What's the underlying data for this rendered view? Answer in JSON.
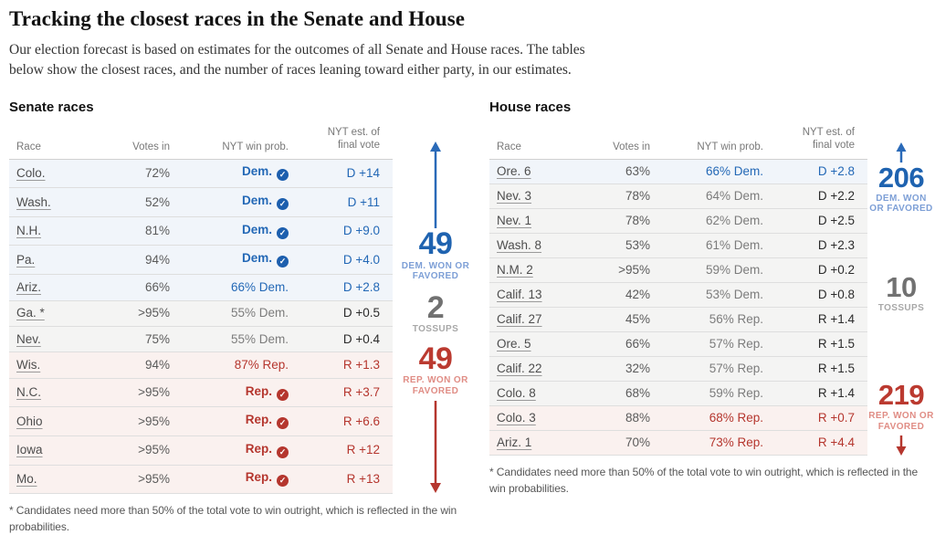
{
  "page": {
    "title": "Tracking the closest races in the Senate and House",
    "subtitle": "Our election forecast is based on estimates for the outcomes of all Senate and House races. The tables below show the closest races, and the number of races leaning toward either party, in our estimates."
  },
  "columns": {
    "race": "Race",
    "votes_in": "Votes in",
    "win_prob": "NYT win prob.",
    "est_line1": "NYT est. of",
    "est_line2": "final vote"
  },
  "footnote": "* Candidates need more than 50% of the total vote to win outright, which is reflected in the win probabilities.",
  "colors": {
    "dem_blue": "#2368b6",
    "rep_red": "#b5362e",
    "tossup_gray": "#7c7c7c",
    "dem_row_bg": "#f1f5fa",
    "tossup_row_bg": "#f4f4f3",
    "rep_row_bg": "#faf1ef"
  },
  "senate": {
    "heading": "Senate races",
    "summary": {
      "dem": {
        "value": "49",
        "label": "DEM. WON OR FAVORED"
      },
      "tossups": {
        "value": "2",
        "label": "TOSSUPS"
      },
      "rep": {
        "value": "49",
        "label": "REP. WON OR FAVORED"
      }
    },
    "rows": [
      {
        "race": "Colo.",
        "votes": "72%",
        "prob": "Dem.",
        "check": true,
        "est": "D +14",
        "party": "dem"
      },
      {
        "race": "Wash.",
        "votes": "52%",
        "prob": "Dem.",
        "check": true,
        "est": "D +11",
        "party": "dem"
      },
      {
        "race": "N.H.",
        "votes": "81%",
        "prob": "Dem.",
        "check": true,
        "est": "D +9.0",
        "party": "dem"
      },
      {
        "race": "Pa.",
        "votes": "94%",
        "prob": "Dem.",
        "check": true,
        "est": "D +4.0",
        "party": "dem"
      },
      {
        "race": "Ariz.",
        "votes": "66%",
        "prob": "66% Dem.",
        "check": false,
        "est": "D +2.8",
        "party": "dem"
      },
      {
        "race": "Ga. *",
        "votes": ">95%",
        "prob": "55% Dem.",
        "check": false,
        "est": "D +0.5",
        "party": "tossup"
      },
      {
        "race": "Nev.",
        "votes": "75%",
        "prob": "55% Dem.",
        "check": false,
        "est": "D +0.4",
        "party": "tossup"
      },
      {
        "race": "Wis.",
        "votes": "94%",
        "prob": "87% Rep.",
        "check": false,
        "est": "R +1.3",
        "party": "rep"
      },
      {
        "race": "N.C.",
        "votes": ">95%",
        "prob": "Rep.",
        "check": true,
        "est": "R +3.7",
        "party": "rep"
      },
      {
        "race": "Ohio",
        "votes": ">95%",
        "prob": "Rep.",
        "check": true,
        "est": "R +6.6",
        "party": "rep"
      },
      {
        "race": "Iowa",
        "votes": ">95%",
        "prob": "Rep.",
        "check": true,
        "est": "R +12",
        "party": "rep"
      },
      {
        "race": "Mo.",
        "votes": ">95%",
        "prob": "Rep.",
        "check": true,
        "est": "R +13",
        "party": "rep"
      }
    ]
  },
  "house": {
    "heading": "House races",
    "summary": {
      "dem": {
        "value": "206",
        "label": "DEM. WON OR FAVORED"
      },
      "tossups": {
        "value": "10",
        "label": "TOSSUPS"
      },
      "rep": {
        "value": "219",
        "label": "REP. WON OR FAVORED"
      }
    },
    "rows": [
      {
        "race": "Ore. 6",
        "votes": "63%",
        "prob": "66% Dem.",
        "check": false,
        "est": "D +2.8",
        "party": "dem"
      },
      {
        "race": "Nev. 3",
        "votes": "78%",
        "prob": "64% Dem.",
        "check": false,
        "est": "D +2.2",
        "party": "tossup"
      },
      {
        "race": "Nev. 1",
        "votes": "78%",
        "prob": "62% Dem.",
        "check": false,
        "est": "D +2.5",
        "party": "tossup"
      },
      {
        "race": "Wash. 8",
        "votes": "53%",
        "prob": "61% Dem.",
        "check": false,
        "est": "D +2.3",
        "party": "tossup"
      },
      {
        "race": "N.M. 2",
        "votes": ">95%",
        "prob": "59% Dem.",
        "check": false,
        "est": "D +0.2",
        "party": "tossup"
      },
      {
        "race": "Calif. 13",
        "votes": "42%",
        "prob": "53% Dem.",
        "check": false,
        "est": "D +0.8",
        "party": "tossup"
      },
      {
        "race": "Calif. 27",
        "votes": "45%",
        "prob": "56% Rep.",
        "check": false,
        "est": "R +1.4",
        "party": "tossup"
      },
      {
        "race": "Ore. 5",
        "votes": "66%",
        "prob": "57% Rep.",
        "check": false,
        "est": "R +1.5",
        "party": "tossup"
      },
      {
        "race": "Calif. 22",
        "votes": "32%",
        "prob": "57% Rep.",
        "check": false,
        "est": "R +1.5",
        "party": "tossup"
      },
      {
        "race": "Colo. 8",
        "votes": "68%",
        "prob": "59% Rep.",
        "check": false,
        "est": "R +1.4",
        "party": "tossup"
      },
      {
        "race": "Colo. 3",
        "votes": "88%",
        "prob": "68% Rep.",
        "check": false,
        "est": "R +0.7",
        "party": "rep"
      },
      {
        "race": "Ariz. 1",
        "votes": "70%",
        "prob": "73% Rep.",
        "check": false,
        "est": "R +4.4",
        "party": "rep"
      }
    ]
  },
  "chart_data": [
    {
      "type": "table",
      "title": "Senate races",
      "columns": [
        "Race",
        "Votes in",
        "NYT win prob.",
        "NYT est. of final vote"
      ],
      "rows": [
        [
          "Colo.",
          "72%",
          "Dem. (won)",
          "D +14"
        ],
        [
          "Wash.",
          "52%",
          "Dem. (won)",
          "D +11"
        ],
        [
          "N.H.",
          "81%",
          "Dem. (won)",
          "D +9.0"
        ],
        [
          "Pa.",
          "94%",
          "Dem. (won)",
          "D +4.0"
        ],
        [
          "Ariz.",
          "66%",
          "66% Dem.",
          "D +2.8"
        ],
        [
          "Ga. *",
          ">95%",
          "55% Dem.",
          "D +0.5"
        ],
        [
          "Nev.",
          "75%",
          "55% Dem.",
          "D +0.4"
        ],
        [
          "Wis.",
          "94%",
          "87% Rep.",
          "R +1.3"
        ],
        [
          "N.C.",
          ">95%",
          "Rep. (won)",
          "R +3.7"
        ],
        [
          "Ohio",
          ">95%",
          "Rep. (won)",
          "R +6.6"
        ],
        [
          "Iowa",
          ">95%",
          "Rep. (won)",
          "R +12"
        ],
        [
          "Mo.",
          ">95%",
          "Rep. (won)",
          "R +13"
        ]
      ],
      "summary": {
        "dem_won_or_favored": 49,
        "tossups": 2,
        "rep_won_or_favored": 49
      }
    },
    {
      "type": "table",
      "title": "House races",
      "columns": [
        "Race",
        "Votes in",
        "NYT win prob.",
        "NYT est. of final vote"
      ],
      "rows": [
        [
          "Ore. 6",
          "63%",
          "66% Dem.",
          "D +2.8"
        ],
        [
          "Nev. 3",
          "78%",
          "64% Dem.",
          "D +2.2"
        ],
        [
          "Nev. 1",
          "78%",
          "62% Dem.",
          "D +2.5"
        ],
        [
          "Wash. 8",
          "53%",
          "61% Dem.",
          "D +2.3"
        ],
        [
          "N.M. 2",
          ">95%",
          "59% Dem.",
          "D +0.2"
        ],
        [
          "Calif. 13",
          "42%",
          "53% Dem.",
          "D +0.8"
        ],
        [
          "Calif. 27",
          "45%",
          "56% Rep.",
          "R +1.4"
        ],
        [
          "Ore. 5",
          "66%",
          "57% Rep.",
          "R +1.5"
        ],
        [
          "Calif. 22",
          "32%",
          "57% Rep.",
          "R +1.5"
        ],
        [
          "Colo. 8",
          "68%",
          "59% Rep.",
          "R +1.4"
        ],
        [
          "Colo. 3",
          "88%",
          "68% Rep.",
          "R +0.7"
        ],
        [
          "Ariz. 1",
          "70%",
          "73% Rep.",
          "R +4.4"
        ]
      ],
      "summary": {
        "dem_won_or_favored": 206,
        "tossups": 10,
        "rep_won_or_favored": 219
      }
    }
  ]
}
